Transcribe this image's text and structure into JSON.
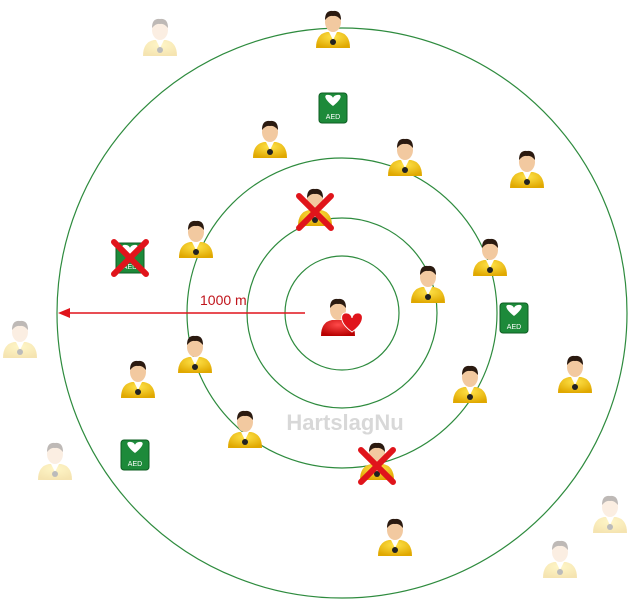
{
  "distance_label": "1000 m",
  "watermark": "HartslagNu",
  "aed_label": "AED"
}
